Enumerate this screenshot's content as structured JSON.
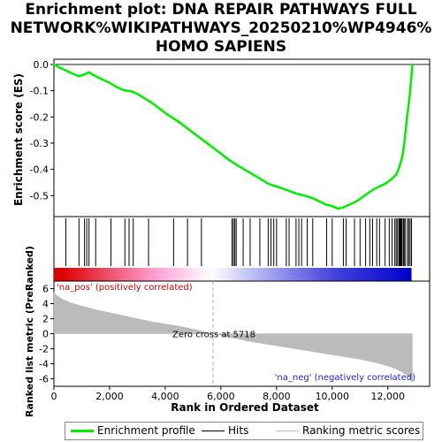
{
  "title_lines": [
    "Enrichment plot: DNA REPAIR PATHWAYS FULL",
    "NETWORK%WIKIPATHWAYS_20250210%WP4946%",
    "HOMO SAPIENS"
  ],
  "chart_data": {
    "type": "line",
    "x_axis": {
      "label": "Rank in Ordered Dataset",
      "range": [
        0,
        13500
      ],
      "ticks": [
        0,
        2000,
        4000,
        6000,
        8000,
        10000,
        12000
      ],
      "tick_labels": [
        "0",
        "2,000",
        "4,000",
        "6,000",
        "8,000",
        "10,000",
        "12,000"
      ]
    },
    "es_panel": {
      "ylabel": "Enrichment score (ES)",
      "ylim": [
        -0.58,
        0.02
      ],
      "ticks": [
        0.0,
        -0.1,
        -0.2,
        -0.3,
        -0.4,
        -0.5
      ],
      "tick_labels": [
        "0.0",
        "-0.1",
        "-0.2",
        "-0.3",
        "-0.4",
        "-0.5"
      ],
      "series": [
        {
          "name": "Enrichment profile",
          "color": "#00ee00",
          "x": [
            0,
            200,
            430,
            600,
            900,
            1100,
            1250,
            1500,
            1700,
            2000,
            2200,
            2500,
            2800,
            3000,
            3500,
            4000,
            4500,
            5000,
            5500,
            6000,
            6300,
            6600,
            7000,
            7400,
            7700,
            8000,
            8400,
            8700,
            9000,
            9300,
            9600,
            9800,
            10000,
            10200,
            10400,
            10500,
            10700,
            10900,
            11100,
            11300,
            11500,
            11700,
            11900,
            12100,
            12300,
            12400,
            12500,
            12550,
            12600,
            12650,
            12700,
            12750,
            12800,
            12850,
            12880
          ],
          "y": [
            0.0,
            -0.012,
            -0.022,
            -0.032,
            -0.045,
            -0.038,
            -0.03,
            -0.045,
            -0.055,
            -0.07,
            -0.083,
            -0.098,
            -0.103,
            -0.112,
            -0.145,
            -0.185,
            -0.22,
            -0.26,
            -0.3,
            -0.34,
            -0.365,
            -0.385,
            -0.41,
            -0.435,
            -0.455,
            -0.465,
            -0.48,
            -0.492,
            -0.5,
            -0.51,
            -0.525,
            -0.535,
            -0.54,
            -0.55,
            -0.545,
            -0.54,
            -0.53,
            -0.52,
            -0.505,
            -0.49,
            -0.475,
            -0.465,
            -0.455,
            -0.44,
            -0.42,
            -0.395,
            -0.36,
            -0.33,
            -0.29,
            -0.24,
            -0.19,
            -0.15,
            -0.1,
            -0.04,
            0.0
          ]
        }
      ]
    },
    "hits": [
      430,
      900,
      1100,
      1180,
      1260,
      1500,
      2050,
      2550,
      2700,
      2850,
      3400,
      4300,
      4800,
      5300,
      6400,
      6450,
      6500,
      6550,
      6800,
      7050,
      7400,
      7700,
      7800,
      7900,
      8000,
      8350,
      8450,
      8700,
      8800,
      8900,
      9100,
      9300,
      9800,
      10000,
      10400,
      10500,
      10800,
      11000,
      11200,
      11350,
      11450,
      11600,
      11700,
      11900,
      12050,
      12150,
      12250,
      12300,
      12350,
      12400,
      12420,
      12450,
      12480,
      12500,
      12550,
      12580,
      12620,
      12700,
      12750,
      12800,
      12850
    ],
    "metric_panel": {
      "ylabel": "Ranked list metric (PreRanked)",
      "ylim": [
        -7,
        7
      ],
      "ticks": [
        6,
        4,
        2,
        0,
        -2,
        -4,
        -6
      ],
      "tick_labels": [
        "6",
        "4",
        "2",
        "0",
        "-2",
        "-4",
        "-6"
      ],
      "series": [
        {
          "name": "Ranking metric scores",
          "color": "#bbbbbb",
          "x": [
            0,
            100,
            300,
            600,
            1000,
            1500,
            2000,
            2500,
            3000,
            3500,
            4000,
            4500,
            5000,
            5718,
            6500,
            7000,
            8000,
            9000,
            10000,
            11000,
            11500,
            12000,
            12300,
            12500,
            12700,
            12800,
            12880
          ],
          "y": [
            5.5,
            5.1,
            4.6,
            4.1,
            3.7,
            3.2,
            2.8,
            2.4,
            2.0,
            1.6,
            1.3,
            1.0,
            0.6,
            0.0,
            -0.6,
            -1.0,
            -1.6,
            -2.2,
            -2.8,
            -3.4,
            -3.8,
            -4.3,
            -4.7,
            -5.1,
            -5.6,
            -6.0,
            -6.5
          ]
        }
      ],
      "zero_cross": 5718,
      "annotations": {
        "pos_label": "'na_pos' (positively correlated)",
        "neg_label": "'na_neg' (negatively correlated)",
        "zero_label": "Zero cross at 5718"
      }
    },
    "legend": {
      "placement": "bottom",
      "items": [
        {
          "label": "Enrichment profile",
          "color": "#00ee00"
        },
        {
          "label": "Hits",
          "color": "#000000"
        },
        {
          "label": "Ranking metric scores",
          "color": "#bbbbbb"
        }
      ]
    },
    "colors": {
      "pos": "#dd0000",
      "neg": "#0000cc",
      "zero_line": "#aaaaaa"
    }
  }
}
